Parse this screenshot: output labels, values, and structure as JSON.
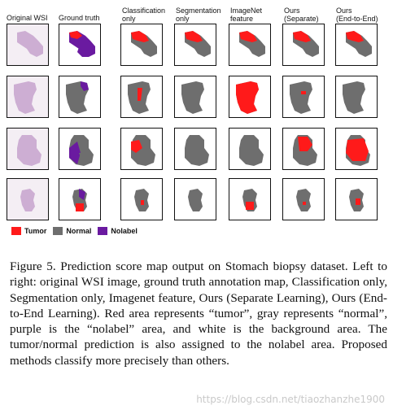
{
  "figure": {
    "column_headers": [
      "Original WSI",
      "Ground truth",
      "Classification\nonly",
      "Segmentation\nonly",
      "ImageNet\nfeature",
      "Ours\n(Separate)",
      "Ours\n(End-to-End)"
    ],
    "legend": [
      {
        "label": "Tumor",
        "color": "#ff1a1a"
      },
      {
        "label": "Normal",
        "color": "#6e6e6e"
      },
      {
        "label": "Nolabel",
        "color": "#6a1aa0"
      }
    ],
    "colors": {
      "tumor": "#ff1a1a",
      "normal": "#6e6e6e",
      "nolabel": "#6a1aa0",
      "tissue": "#c9a6cf",
      "cell_border": "#111111"
    }
  },
  "caption": {
    "text": "Figure 5. Prediction score map output on Stomach biopsy dataset. Left to right: original WSI image, ground truth annotation map, Classification only, Segmentation only, Imagenet feature, Ours (Separate Learning), Ours (End-to-End Learning). Red area represents “tumor”, gray represents “normal”, purple is the “nolabel” area, and white is the background area. The tumor/normal prediction is also assigned to the nolabel area. Proposed methods classify more precisely than others."
  },
  "watermark": "https://blog.csdn.net/tiaozhanzhe1900"
}
